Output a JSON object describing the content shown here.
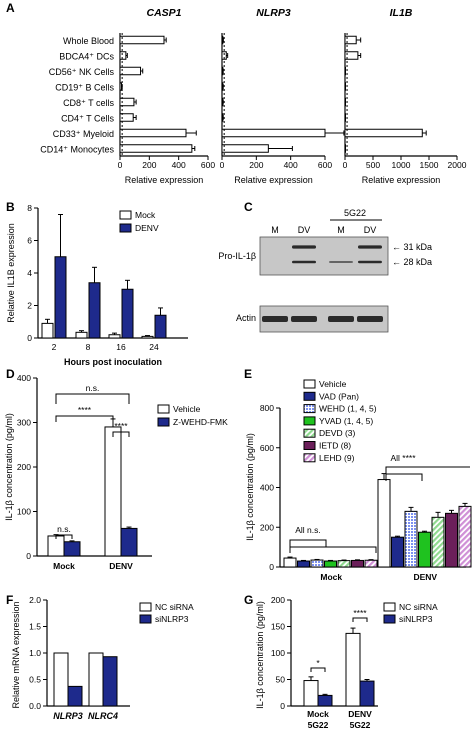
{
  "colors": {
    "open": "#ffffff",
    "navy": "#1e2a8c",
    "black": "#000000",
    "vad": "#1e2a8c",
    "wehd": "#7b90f0",
    "yvad": "#1fc21f",
    "devd": "#8fd98f",
    "ietd": "#6b1f5a",
    "lehd": "#cf8fd6",
    "blot_bg": "#c7c7c7",
    "band": "#2a2a2a"
  },
  "panel_letters": [
    "A",
    "B",
    "C",
    "D",
    "E",
    "F",
    "G"
  ],
  "panelA": {
    "gene_titles": [
      "CASP1",
      "NLRP3",
      "IL1B"
    ],
    "cell_types": [
      "Whole Blood",
      "BDCA4⁺ DCs",
      "CD56⁺ NK Cells",
      "CD19⁺ B Cells",
      "CD8⁺ T cells",
      "CD4⁺ T Cells",
      "CD33⁺ Myeloid",
      "CD14⁺ Monocytes"
    ],
    "xlabel": "Relative expression",
    "ticks": [
      [
        "0",
        "200",
        "400",
        "600"
      ],
      [
        "0",
        "200",
        "400",
        "600"
      ],
      [
        "0",
        "500",
        "1000",
        "1500",
        "2000"
      ]
    ]
  },
  "panelB": {
    "ylabel": "Relative IL1B expression",
    "xlabel": "Hours post inoculation",
    "legend": [
      "Mock",
      "DENV"
    ],
    "categories": [
      "2",
      "8",
      "16",
      "24"
    ],
    "yticks": [
      "0",
      "2",
      "4",
      "6",
      "8"
    ]
  },
  "panelC": {
    "header_5g22": "5G22",
    "lanes": [
      "M",
      "DV",
      "M",
      "DV"
    ],
    "row_labels": [
      "Pro-IL-1β",
      "Actin"
    ],
    "kda": [
      "← 31 kDa",
      "← 28 kDa"
    ]
  },
  "panelD": {
    "ylabel": "IL-1β concentration (pg/ml)",
    "legend": [
      "Vehicle",
      "Z-WEHD-FMK"
    ],
    "categories": [
      "Mock",
      "DENV"
    ],
    "yticks": [
      "0",
      "100",
      "200",
      "300",
      "400"
    ],
    "sig": [
      "n.s.",
      "****",
      "****",
      "n.s."
    ]
  },
  "panelE": {
    "ylabel": "IL-1β concentration (pg/ml)",
    "categories": [
      "Mock",
      "DENV"
    ],
    "legend": [
      "Vehicle",
      "VAD (Pan)",
      "WEHD (1, 4, 5)",
      "YVAD (1, 4, 5)",
      "DEVD (3)",
      "IETD (8)",
      "LEHD (9)"
    ],
    "yticks": [
      "0",
      "200",
      "400",
      "600",
      "800"
    ],
    "annotations": [
      "All ****",
      "All n.s."
    ]
  },
  "panelF": {
    "ylabel": "Relative mRNA expression",
    "legend": [
      "NC siRNA",
      "siNLRP3"
    ],
    "categories": [
      "NLRP3",
      "NLRC4"
    ],
    "yticks": [
      "0.0",
      "0.5",
      "1.0",
      "1.5",
      "2.0"
    ]
  },
  "panelG": {
    "ylabel": "IL-1β concentration (pg/ml)",
    "legend": [
      "NC siRNA",
      "siNLRP3"
    ],
    "categories": [
      "Mock",
      "DENV"
    ],
    "subcat": "5G22",
    "yticks": [
      "0",
      "50",
      "100",
      "150",
      "200"
    ],
    "sig": [
      "*",
      "****"
    ]
  },
  "chart_data": [
    {
      "type": "bar",
      "orientation": "horizontal",
      "title": "CASP1",
      "xlabel": "Relative expression",
      "categories": [
        "Whole Blood",
        "BDCA4⁺ DCs",
        "CD56⁺ NK Cells",
        "CD19⁺ B Cells",
        "CD8⁺ T cells",
        "CD4⁺ T Cells",
        "CD33⁺ Myeloid",
        "CD14⁺ Monocytes"
      ],
      "values": [
        300,
        40,
        140,
        10,
        95,
        90,
        450,
        490
      ],
      "errors": [
        15,
        10,
        15,
        5,
        15,
        20,
        70,
        20
      ],
      "xlim": [
        0,
        600
      ],
      "ref_line": 1
    },
    {
      "type": "bar",
      "orientation": "horizontal",
      "title": "NLRP3",
      "xlabel": "Relative expression",
      "categories": [
        "Whole Blood",
        "BDCA4⁺ DCs",
        "CD56⁺ NK Cells",
        "CD19⁺ B Cells",
        "CD8⁺ T cells",
        "CD4⁺ T Cells",
        "CD33⁺ Myeloid",
        "CD14⁺ Monocytes"
      ],
      "values": [
        5,
        25,
        5,
        5,
        5,
        5,
        600,
        270
      ],
      "errors": [
        3,
        8,
        2,
        2,
        2,
        2,
        110,
        140
      ],
      "xlim": [
        0,
        600
      ],
      "ref_line": 1
    },
    {
      "type": "bar",
      "orientation": "horizontal",
      "title": "IL1B",
      "xlabel": "Relative expression",
      "categories": [
        "Whole Blood",
        "BDCA4⁺ DCs",
        "CD56⁺ NK Cells",
        "CD19⁺ B Cells",
        "CD8⁺ T cells",
        "CD4⁺ T Cells",
        "CD33⁺ Myeloid",
        "CD14⁺ Monocytes"
      ],
      "values": [
        200,
        230,
        5,
        5,
        5,
        5,
        1380,
        5
      ],
      "errors": [
        80,
        50,
        2,
        2,
        2,
        2,
        70,
        2
      ],
      "xlim": [
        0,
        2000
      ],
      "ref_line": 1
    },
    {
      "type": "bar",
      "ylabel": "Relative IL1B expression",
      "xlabel": "Hours post inoculation",
      "categories": [
        "2",
        "8",
        "16",
        "24"
      ],
      "ylim": [
        0,
        8
      ],
      "series": [
        {
          "name": "Mock",
          "values": [
            0.9,
            0.35,
            0.2,
            0.1
          ],
          "errors": [
            0.25,
            0.1,
            0.1,
            0.05
          ]
        },
        {
          "name": "DENV",
          "values": [
            5.0,
            3.4,
            3.0,
            1.4
          ],
          "errors": [
            2.6,
            0.95,
            0.55,
            0.45
          ]
        }
      ]
    },
    {
      "type": "bar",
      "ylabel": "IL-1β concentration (pg/ml)",
      "categories": [
        "Mock",
        "DENV"
      ],
      "ylim": [
        0,
        400
      ],
      "series": [
        {
          "name": "Vehicle",
          "values": [
            45,
            290
          ],
          "errors": [
            3,
            18
          ]
        },
        {
          "name": "Z-WEHD-FMK",
          "values": [
            32,
            62
          ],
          "errors": [
            2,
            3
          ]
        }
      ]
    },
    {
      "type": "bar",
      "ylabel": "IL-1β concentration (pg/ml)",
      "categories": [
        "Mock",
        "DENV"
      ],
      "ylim": [
        0,
        800
      ],
      "series": [
        {
          "name": "Vehicle",
          "values": [
            45,
            440
          ],
          "errors": [
            5,
            30
          ]
        },
        {
          "name": "VAD (Pan)",
          "values": [
            30,
            150
          ],
          "errors": [
            3,
            5
          ]
        },
        {
          "name": "WEHD (1, 4, 5)",
          "values": [
            35,
            280
          ],
          "errors": [
            3,
            20
          ]
        },
        {
          "name": "YVAD (1, 4, 5)",
          "values": [
            30,
            175
          ],
          "errors": [
            3,
            5
          ]
        },
        {
          "name": "DEVD (3)",
          "values": [
            32,
            250
          ],
          "errors": [
            3,
            25
          ]
        },
        {
          "name": "IETD (8)",
          "values": [
            33,
            270
          ],
          "errors": [
            3,
            15
          ]
        },
        {
          "name": "LEHD (9)",
          "values": [
            34,
            305
          ],
          "errors": [
            3,
            15
          ]
        }
      ]
    },
    {
      "type": "bar",
      "ylabel": "Relative mRNA expression",
      "categories": [
        "NLRP3",
        "NLRC4"
      ],
      "ylim": [
        0,
        2.0
      ],
      "series": [
        {
          "name": "NC siRNA",
          "values": [
            1.0,
            1.0
          ]
        },
        {
          "name": "siNLRP3",
          "values": [
            0.37,
            0.93
          ]
        }
      ]
    },
    {
      "type": "bar",
      "ylabel": "IL-1β concentration (pg/ml)",
      "categories": [
        "Mock 5G22",
        "DENV 5G22"
      ],
      "ylim": [
        0,
        200
      ],
      "series": [
        {
          "name": "NC siRNA",
          "values": [
            48,
            137
          ],
          "errors": [
            7,
            10
          ]
        },
        {
          "name": "siNLRP3",
          "values": [
            20,
            47
          ],
          "errors": [
            2,
            3
          ]
        }
      ]
    }
  ]
}
